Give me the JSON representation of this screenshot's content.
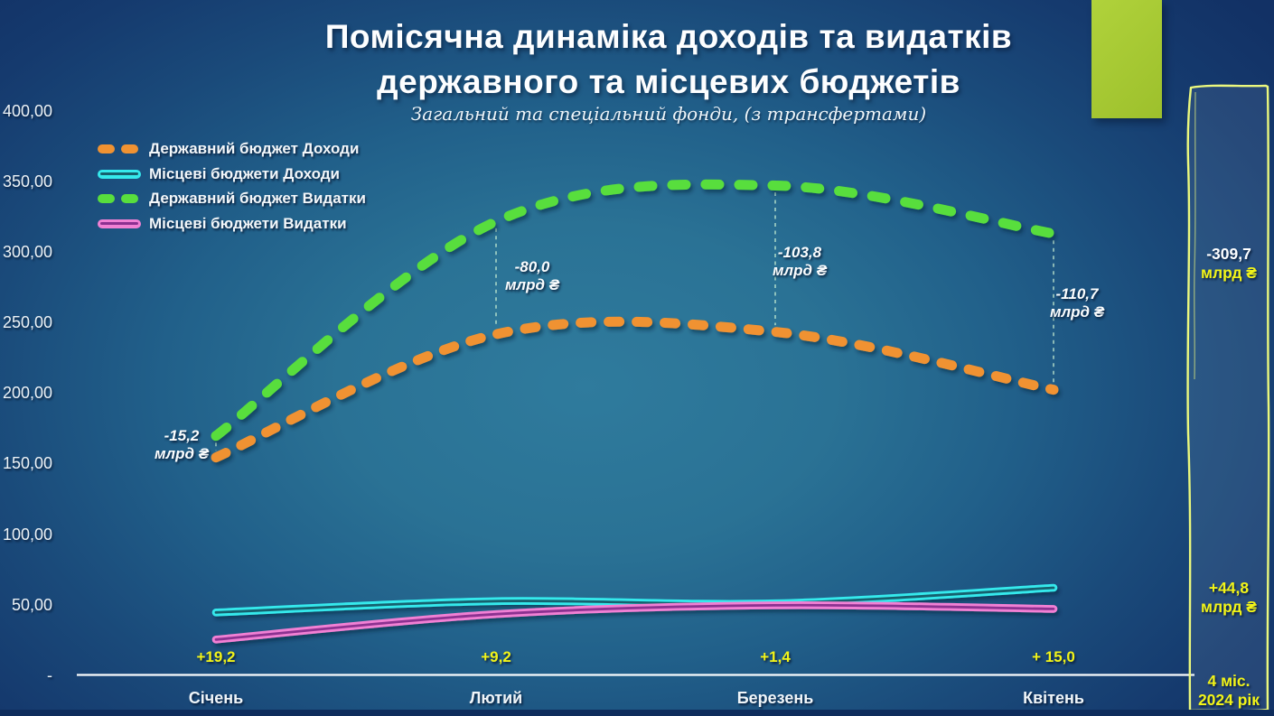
{
  "title": {
    "line1": "Помісячна динаміка доходів та видатків",
    "line2": "державного та місцевих бюджетів",
    "subtitle": "Загальний та спеціальний фонди, (з трансфертами)"
  },
  "colors": {
    "badge": "#a6ca35",
    "frame_border": "#ebf87d",
    "accent_yellow": "#f2f418",
    "state_revenue": "#f09232",
    "local_revenue": "#35e9ec",
    "state_expenditure": "#58de3d",
    "local_expenditure": "#f180d4"
  },
  "legend": [
    {
      "key": "state_revenue",
      "label": "Державний бюджет Доходи",
      "style": "dashed",
      "color": "#f09232"
    },
    {
      "key": "local_revenue",
      "label": "Місцеві бюджети Доходи",
      "style": "solid",
      "color": "#35e9ec",
      "core": "#16606e"
    },
    {
      "key": "state_expenditure",
      "label": "Державний бюджет Видатки",
      "style": "dashed",
      "color": "#58de3d"
    },
    {
      "key": "local_expenditure",
      "label": "Місцеві бюджети Видатки",
      "style": "solid",
      "color": "#f180d4",
      "core": "#8c3090"
    }
  ],
  "chart_data": {
    "type": "line",
    "title": "Помісячна динаміка доходів та видатків державного та місцевих бюджетів",
    "subtitle": "Загальний та спеціальний фонди, (з трансфертами)",
    "unit": "млрд ₴",
    "categories": [
      "Січень",
      "Лютий",
      "Березень",
      "Квітень"
    ],
    "ylim": [
      0,
      400
    ],
    "grid": false,
    "legend_position": "top-left",
    "yticks": [
      {
        "v": 400,
        "label": "400,00"
      },
      {
        "v": 350,
        "label": "350,00"
      },
      {
        "v": 300,
        "label": "300,00"
      },
      {
        "v": 250,
        "label": "250,00"
      },
      {
        "v": 200,
        "label": "200,00"
      },
      {
        "v": 150,
        "label": "150,00"
      },
      {
        "v": 100,
        "label": "100,00"
      },
      {
        "v": 50,
        "label": "50,00"
      },
      {
        "v": 0,
        "label": "-"
      }
    ],
    "series": [
      {
        "key": "state_expenditure",
        "name": "Державний бюджет Видатки",
        "color": "#58de3d",
        "style": "dashed",
        "dash": "15 22",
        "values": [
          170.2,
          322.3,
          347.8,
          313.7
        ]
      },
      {
        "key": "state_revenue",
        "name": "Державний бюджет Доходи",
        "color": "#f09232",
        "style": "dashed",
        "dash": "12 19",
        "values": [
          155.0,
          242.3,
          244.0,
          203.0
        ]
      },
      {
        "key": "local_revenue",
        "name": "Місцеві бюджети Доходи",
        "color": "#35e9ec",
        "core": "#16606e",
        "style": "solid",
        "values": [
          45.0,
          53.0,
          51.5,
          62.5
        ]
      },
      {
        "key": "local_expenditure",
        "name": "Місцеві бюджети Видатки",
        "color": "#f180d4",
        "core": "#8c3090",
        "style": "solid",
        "values": [
          25.8,
          43.8,
          50.1,
          47.5
        ]
      }
    ]
  },
  "annotations": {
    "monthly_state_gaps": [
      {
        "value": "-15,2",
        "unit": "млрд ₴"
      },
      {
        "value": "-80,0",
        "unit": "млрд ₴"
      },
      {
        "value": "-103,8",
        "unit": "млрд ₴"
      },
      {
        "value": "-110,7",
        "unit": "млрд ₴"
      }
    ],
    "monthly_local_diffs": [
      "+19,2",
      "+9,2",
      "+1,4",
      "+ 15,0"
    ],
    "total_state_gap": {
      "value": "-309,7",
      "unit": "млрд ₴"
    },
    "total_local_diff": {
      "value": "+44,8",
      "unit": "млрд ₴"
    },
    "period": {
      "line1": "4 міс.",
      "line2": "2024 рік"
    }
  }
}
